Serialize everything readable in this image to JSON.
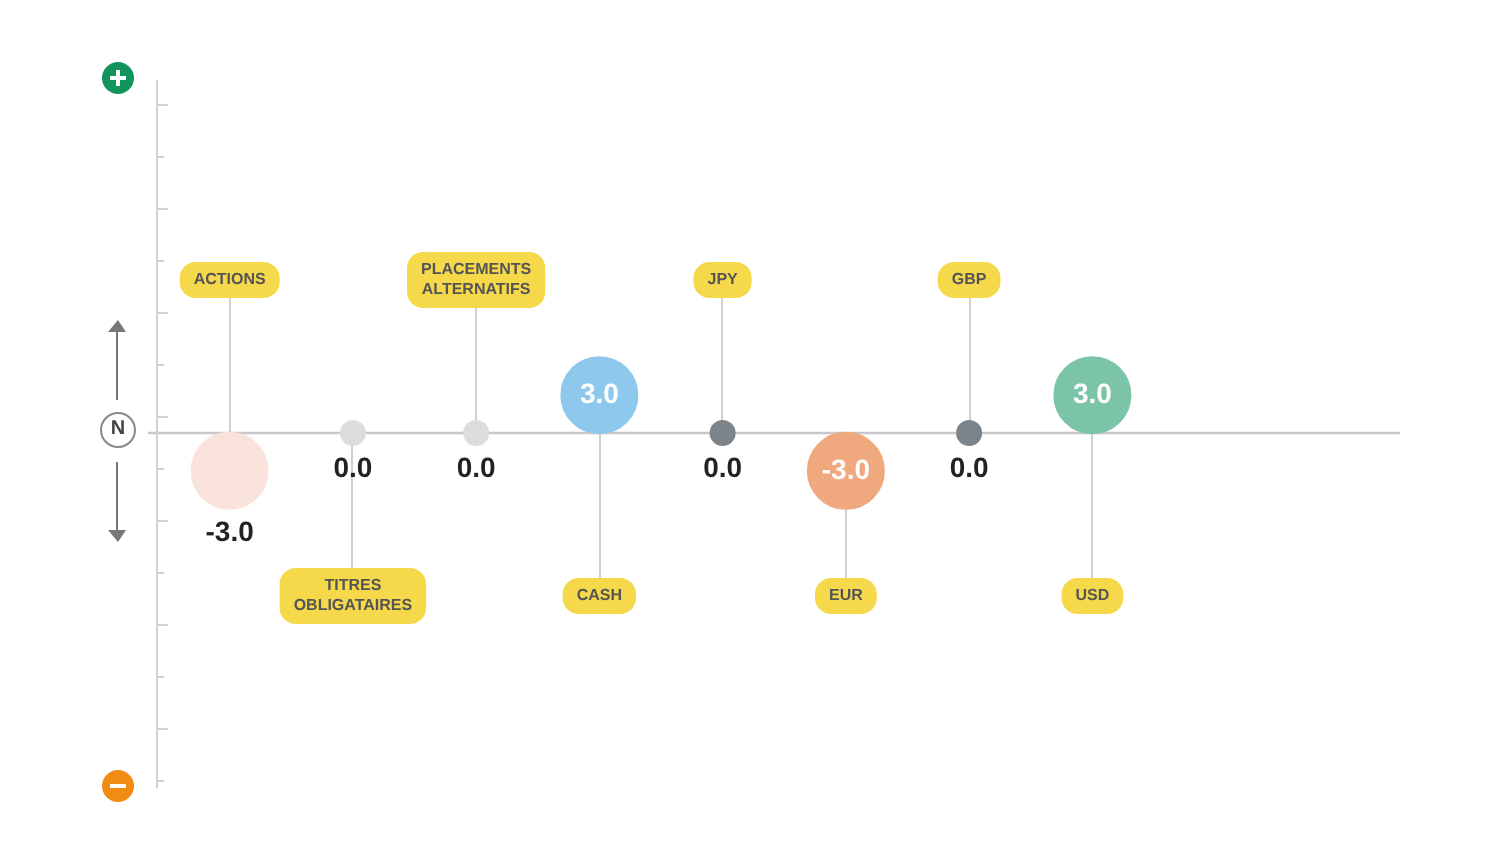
{
  "chart_data": {
    "type": "lollipop",
    "categories": [
      "ACTIONS",
      "TITRES OBLIGATAIRES",
      "PLACEMENTS ALTERNATIFS",
      "CASH",
      "JPY",
      "EUR",
      "GBP",
      "USD"
    ],
    "values": [
      -3.0,
      0.0,
      0.0,
      3.0,
      0.0,
      -3.0,
      0.0,
      3.0
    ],
    "value_labels": [
      "-3.0",
      "0.0",
      "0.0",
      "3.0",
      "0.0",
      "-3.0",
      "0.0",
      "3.0"
    ],
    "colors": [
      "#f9e3da",
      "#dddddd",
      "#dddddd",
      "#8ec8ec",
      "#7d8489",
      "#f0a87e",
      "#7d8489",
      "#7cc4a8"
    ],
    "sizes": [
      1,
      0.1,
      0.1,
      1,
      0.1,
      1,
      0.1,
      1
    ],
    "ylim": [
      -28,
      28
    ],
    "annotations": [
      "N"
    ]
  }
}
